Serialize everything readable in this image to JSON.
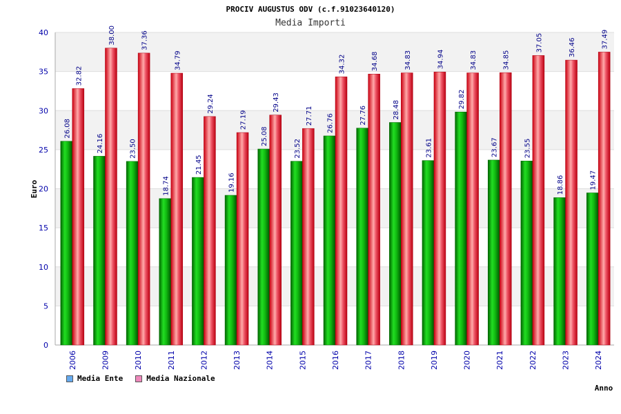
{
  "chart_data": {
    "type": "bar",
    "title": "PROCIV AUGUSTUS ODV (c.f.91023640120)",
    "subtitle": "Media Importi",
    "xlabel": "Anno",
    "ylabel": "Euro",
    "ylim": [
      0,
      40
    ],
    "yticks": [
      "0",
      "5",
      "10",
      "15",
      "20",
      "25",
      "30",
      "35",
      "40"
    ],
    "categories": [
      "2006",
      "2009",
      "2010",
      "2011",
      "2012",
      "2013",
      "2014",
      "2015",
      "2016",
      "2017",
      "2018",
      "2019",
      "2020",
      "2021",
      "2022",
      "2023",
      "2024"
    ],
    "series": [
      {
        "name": "Media Ente",
        "color": "#00aa00",
        "values": [
          26.08,
          24.16,
          23.5,
          18.74,
          21.45,
          19.16,
          25.08,
          23.52,
          26.76,
          27.76,
          28.48,
          23.61,
          29.82,
          23.67,
          23.55,
          18.86,
          19.47
        ],
        "labels": [
          "26.08",
          "24.16",
          "23.50",
          "18.74",
          "21.45",
          "19.16",
          "25.08",
          "23.52",
          "26.76",
          "27.76",
          "28.48",
          "23.61",
          "29.82",
          "23.67",
          "23.55",
          "18.86",
          "19.47"
        ]
      },
      {
        "name": "Media Nazionale",
        "color": "#ee2233",
        "values": [
          32.82,
          38.0,
          37.36,
          34.79,
          29.24,
          27.19,
          29.43,
          27.71,
          34.32,
          34.68,
          34.83,
          34.94,
          34.83,
          34.85,
          37.05,
          36.46,
          37.49
        ],
        "labels": [
          "32.82",
          "38.00",
          "37.36",
          "34.79",
          "29.24",
          "27.19",
          "29.43",
          "27.71",
          "34.32",
          "34.68",
          "34.83",
          "34.94",
          "34.83",
          "34.85",
          "37.05",
          "36.46",
          "37.49"
        ]
      }
    ],
    "grid": true,
    "legend_position": "bottom-left"
  },
  "legend": {
    "items": [
      {
        "label": "Media Ente",
        "color": "#66aaee"
      },
      {
        "label": "Media Nazionale",
        "color": "#ee88bb"
      }
    ]
  }
}
